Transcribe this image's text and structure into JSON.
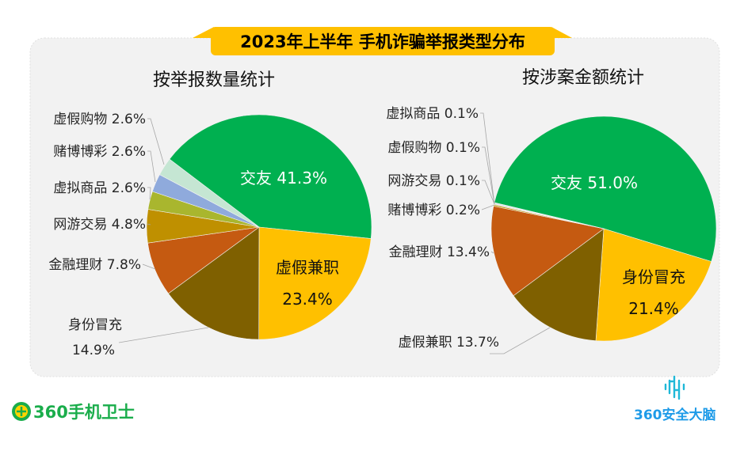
{
  "title": "2023年上半年 手机诈骗举报类型分布",
  "colors": {
    "banner": "#ffc000",
    "panel": "#f2f2f2",
    "logo_left": "#1aad4b",
    "logo_right": "#1e9be8"
  },
  "logos": {
    "left": "360手机卫士",
    "right": "360安全大脑"
  },
  "chart_data": [
    {
      "type": "pie",
      "title": "按举报数量统计",
      "unit": "%",
      "slices": [
        {
          "name": "交友",
          "value": 41.3,
          "color": "#00b050"
        },
        {
          "name": "虚假兼职",
          "value": 23.4,
          "color": "#ffc000"
        },
        {
          "name": "身份冒充",
          "value": 14.9,
          "color": "#7f6000"
        },
        {
          "name": "金融理财",
          "value": 7.8,
          "color": "#c55a11"
        },
        {
          "name": "网游交易",
          "value": 4.8,
          "color": "#bf9000"
        },
        {
          "name": "虚拟商品",
          "value": 2.6,
          "color": "#a9b62e"
        },
        {
          "name": "赌博博彩",
          "value": 2.6,
          "color": "#8faadc"
        },
        {
          "name": "虚假购物",
          "value": 2.6,
          "color": "#c5e6d3"
        }
      ]
    },
    {
      "type": "pie",
      "title": "按涉案金额统计",
      "unit": "%",
      "slices": [
        {
          "name": "交友",
          "value": 51.0,
          "color": "#00b050"
        },
        {
          "name": "身份冒充",
          "value": 21.4,
          "color": "#ffc000"
        },
        {
          "name": "虚假兼职",
          "value": 13.7,
          "color": "#7f6000"
        },
        {
          "name": "金融理财",
          "value": 13.4,
          "color": "#c55a11"
        },
        {
          "name": "赌博博彩",
          "value": 0.2,
          "color": "#bf9000"
        },
        {
          "name": "网游交易",
          "value": 0.1,
          "color": "#a9b62e"
        },
        {
          "name": "虚假购物",
          "value": 0.1,
          "color": "#8faadc"
        },
        {
          "name": "虚拟商品",
          "value": 0.1,
          "color": "#c5e6d3"
        }
      ]
    }
  ]
}
